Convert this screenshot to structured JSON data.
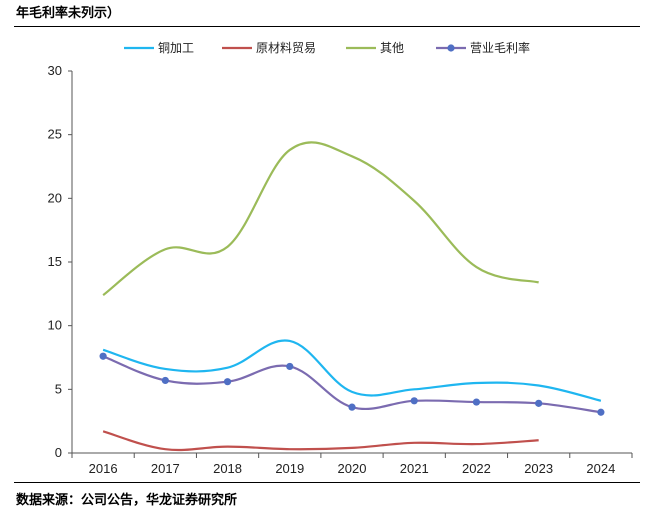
{
  "header": {
    "title": "年毛利率未列示）"
  },
  "footer": {
    "source": "数据来源：公司公告，华龙证券研究所"
  },
  "chart_data": {
    "type": "line",
    "title": "",
    "xlabel": "",
    "ylabel": "",
    "ylim": [
      0,
      30
    ],
    "yticks": [
      0,
      5,
      10,
      15,
      20,
      25,
      30
    ],
    "categories": [
      "2016",
      "2017",
      "2018",
      "2019",
      "2020",
      "2021",
      "2022",
      "2023",
      "2024"
    ],
    "legend_position": "top",
    "series": [
      {
        "name": "铜加工",
        "color": "#1fb6f0",
        "marker": false,
        "values": [
          8.1,
          6.6,
          6.7,
          8.8,
          4.8,
          5.0,
          5.5,
          5.3,
          4.1
        ]
      },
      {
        "name": "原材料贸易",
        "color": "#c0504d",
        "marker": false,
        "values": [
          1.7,
          0.3,
          0.5,
          0.3,
          0.4,
          0.8,
          0.7,
          1.0,
          null
        ]
      },
      {
        "name": "其他",
        "color": "#9bbb59",
        "marker": false,
        "values": [
          12.4,
          16.0,
          16.2,
          23.8,
          23.3,
          19.8,
          14.6,
          13.4,
          null
        ]
      },
      {
        "name": "营业毛利率",
        "color": "#7b6bb0",
        "marker": true,
        "marker_color": "#4f6fc4",
        "values": [
          7.6,
          5.7,
          5.6,
          6.8,
          3.6,
          4.1,
          4.0,
          3.9,
          3.2
        ]
      }
    ]
  }
}
